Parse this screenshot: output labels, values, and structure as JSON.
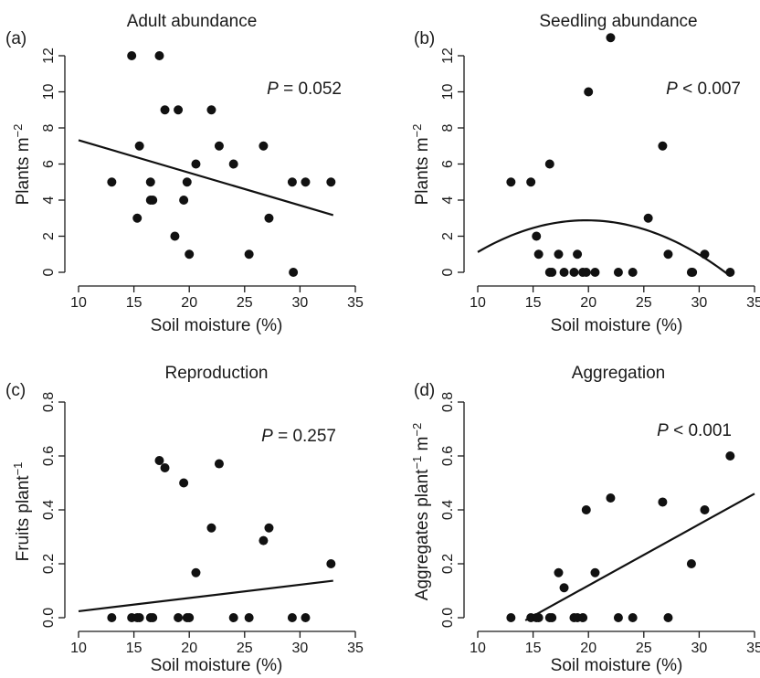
{
  "chart_data": [
    {
      "type": "scatter",
      "label": "(a)",
      "title": "Adult abundance",
      "xlabel": "Soil moisture (%)",
      "ylabel": "Plants m",
      "ylabel_sup": "−2",
      "annotation": {
        "italic": "P",
        "text": " = 0.052"
      },
      "xlim": [
        10,
        35
      ],
      "ylim": [
        0,
        12
      ],
      "xticks": [
        10,
        15,
        20,
        25,
        30,
        35
      ],
      "yticks": [
        0,
        2,
        4,
        6,
        8,
        10,
        12
      ],
      "ytick_labels": [
        "0",
        "2",
        "4",
        "6",
        "8",
        "10",
        "12"
      ],
      "points": [
        [
          13.0,
          5
        ],
        [
          14.8,
          12
        ],
        [
          15.3,
          3
        ],
        [
          15.5,
          7
        ],
        [
          16.5,
          5
        ],
        [
          16.5,
          4
        ],
        [
          16.7,
          4
        ],
        [
          17.3,
          12
        ],
        [
          17.8,
          9
        ],
        [
          18.7,
          2
        ],
        [
          19.0,
          9
        ],
        [
          19.5,
          4
        ],
        [
          19.8,
          5
        ],
        [
          20.0,
          1
        ],
        [
          20.6,
          6
        ],
        [
          22.0,
          9
        ],
        [
          22.7,
          7
        ],
        [
          24.0,
          6
        ],
        [
          25.4,
          1
        ],
        [
          26.7,
          7
        ],
        [
          27.2,
          3
        ],
        [
          29.3,
          5
        ],
        [
          29.4,
          0
        ],
        [
          30.5,
          5
        ],
        [
          32.8,
          5
        ]
      ],
      "fit": {
        "kind": "linear",
        "x": [
          10,
          33
        ],
        "y": [
          7.32,
          3.17
        ]
      }
    },
    {
      "type": "scatter",
      "label": "(b)",
      "title": "Seedling abundance",
      "xlabel": "Soil moisture (%)",
      "ylabel": "Plants m",
      "ylabel_sup": "−2",
      "annotation": {
        "italic": "P",
        "text": " < 0.007"
      },
      "xlim": [
        10,
        35
      ],
      "ylim": [
        0,
        12
      ],
      "xticks": [
        10,
        15,
        20,
        25,
        30,
        35
      ],
      "yticks": [
        0,
        2,
        4,
        6,
        8,
        10,
        12
      ],
      "ytick_labels": [
        "0",
        "2",
        "4",
        "6",
        "8",
        "10",
        "12"
      ],
      "points": [
        [
          13.0,
          5
        ],
        [
          14.8,
          5
        ],
        [
          15.3,
          2
        ],
        [
          15.5,
          1
        ],
        [
          16.5,
          6
        ],
        [
          16.5,
          0
        ],
        [
          16.7,
          0
        ],
        [
          17.3,
          1
        ],
        [
          17.8,
          0
        ],
        [
          18.7,
          0
        ],
        [
          19.0,
          1
        ],
        [
          19.5,
          0
        ],
        [
          19.8,
          0
        ],
        [
          20.0,
          10
        ],
        [
          20.6,
          0
        ],
        [
          22.0,
          13
        ],
        [
          22.7,
          0
        ],
        [
          24.0,
          0
        ],
        [
          25.4,
          3
        ],
        [
          26.7,
          7
        ],
        [
          27.2,
          1
        ],
        [
          29.3,
          0
        ],
        [
          29.4,
          0
        ],
        [
          30.5,
          1
        ],
        [
          32.8,
          0
        ]
      ],
      "fit": {
        "kind": "quadratic",
        "x_range": [
          10,
          32.8
        ],
        "coef": [
          -4.3,
          0.725,
          -0.0183
        ]
      }
    },
    {
      "type": "scatter",
      "label": "(c)",
      "title": "Reproduction",
      "xlabel": "Soil moisture (%)",
      "ylabel": "Fruits plant",
      "ylabel_sup": "−1",
      "annotation": {
        "italic": "P",
        "text": " = 0.257"
      },
      "xlim": [
        10,
        35
      ],
      "ylim": [
        0,
        0.8
      ],
      "xticks": [
        10,
        15,
        20,
        25,
        30,
        35
      ],
      "yticks": [
        0,
        0.2,
        0.4,
        0.6,
        0.8
      ],
      "ytick_labels": [
        "0.0",
        "0.2",
        "0.4",
        "0.6",
        "0.8"
      ],
      "points": [
        [
          13.0,
          0
        ],
        [
          14.8,
          0
        ],
        [
          15.3,
          0
        ],
        [
          15.5,
          0
        ],
        [
          16.5,
          0
        ],
        [
          16.7,
          0
        ],
        [
          17.3,
          0.583
        ],
        [
          17.8,
          0.556
        ],
        [
          19.0,
          0
        ],
        [
          19.5,
          0.5
        ],
        [
          19.8,
          0
        ],
        [
          20.0,
          0
        ],
        [
          20.6,
          0.167
        ],
        [
          22.0,
          0.333
        ],
        [
          22.7,
          0.571
        ],
        [
          24.0,
          0
        ],
        [
          25.4,
          0
        ],
        [
          26.7,
          0.286
        ],
        [
          27.2,
          0.333
        ],
        [
          29.3,
          0
        ],
        [
          30.5,
          0
        ],
        [
          32.8,
          0.2
        ]
      ],
      "fit": {
        "kind": "linear",
        "x": [
          10,
          33
        ],
        "y": [
          0.024,
          0.137
        ]
      }
    },
    {
      "type": "scatter",
      "label": "(d)",
      "title": "Aggregation",
      "xlabel": "Soil moisture (%)",
      "ylabel": "Aggregates plant",
      "ylabel_sup": "−1",
      "ylabel_mid": " m",
      "ylabel_sup2": "−2",
      "annotation": {
        "italic": "P",
        "text": " < 0.001"
      },
      "xlim": [
        10,
        35
      ],
      "ylim": [
        0,
        0.8
      ],
      "xticks": [
        10,
        15,
        20,
        25,
        30,
        35
      ],
      "yticks": [
        0,
        0.2,
        0.4,
        0.6,
        0.8
      ],
      "ytick_labels": [
        "0.0",
        "0.2",
        "0.4",
        "0.6",
        "0.8"
      ],
      "points": [
        [
          13.0,
          0
        ],
        [
          14.8,
          0
        ],
        [
          15.3,
          0
        ],
        [
          15.5,
          0
        ],
        [
          16.5,
          0
        ],
        [
          16.7,
          0
        ],
        [
          17.3,
          0.167
        ],
        [
          17.8,
          0.111
        ],
        [
          18.7,
          0
        ],
        [
          19.0,
          0
        ],
        [
          19.5,
          0
        ],
        [
          19.8,
          0.4
        ],
        [
          20.6,
          0.167
        ],
        [
          22.0,
          0.444
        ],
        [
          22.7,
          0
        ],
        [
          24.0,
          0
        ],
        [
          26.7,
          0.429
        ],
        [
          27.2,
          0
        ],
        [
          29.3,
          0.2
        ],
        [
          30.5,
          0.4
        ],
        [
          32.8,
          0.6
        ]
      ],
      "fit": {
        "kind": "linear",
        "x": [
          14.3,
          35
        ],
        "y": [
          -0.01,
          0.46
        ]
      }
    }
  ]
}
